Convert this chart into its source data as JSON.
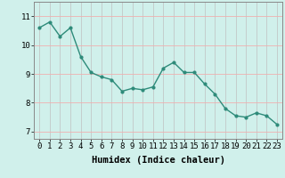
{
  "x": [
    0,
    1,
    2,
    3,
    4,
    5,
    6,
    7,
    8,
    9,
    10,
    11,
    12,
    13,
    14,
    15,
    16,
    17,
    18,
    19,
    20,
    21,
    22,
    23
  ],
  "y": [
    10.6,
    10.8,
    10.3,
    10.6,
    9.6,
    9.05,
    8.9,
    8.8,
    8.4,
    8.5,
    8.45,
    8.55,
    9.2,
    9.4,
    9.05,
    9.05,
    8.65,
    8.3,
    7.8,
    7.55,
    7.5,
    7.65,
    7.55,
    7.25
  ],
  "line_color": "#2e8b7a",
  "marker": "o",
  "marker_size": 2.0,
  "bg_color": "#d0f0eb",
  "grid_color_x": "#c0c0c0",
  "grid_color_y": "#f0b0b0",
  "xlabel": "Humidex (Indice chaleur)",
  "ylim": [
    6.75,
    11.5
  ],
  "xlim": [
    -0.5,
    23.5
  ],
  "yticks": [
    7,
    8,
    9,
    10,
    11
  ],
  "xticks": [
    0,
    1,
    2,
    3,
    4,
    5,
    6,
    7,
    8,
    9,
    10,
    11,
    12,
    13,
    14,
    15,
    16,
    17,
    18,
    19,
    20,
    21,
    22,
    23
  ],
  "xlabel_fontsize": 7.5,
  "tick_fontsize": 6.5,
  "line_width": 1.0,
  "fig_bg_color": "#d0f0eb"
}
